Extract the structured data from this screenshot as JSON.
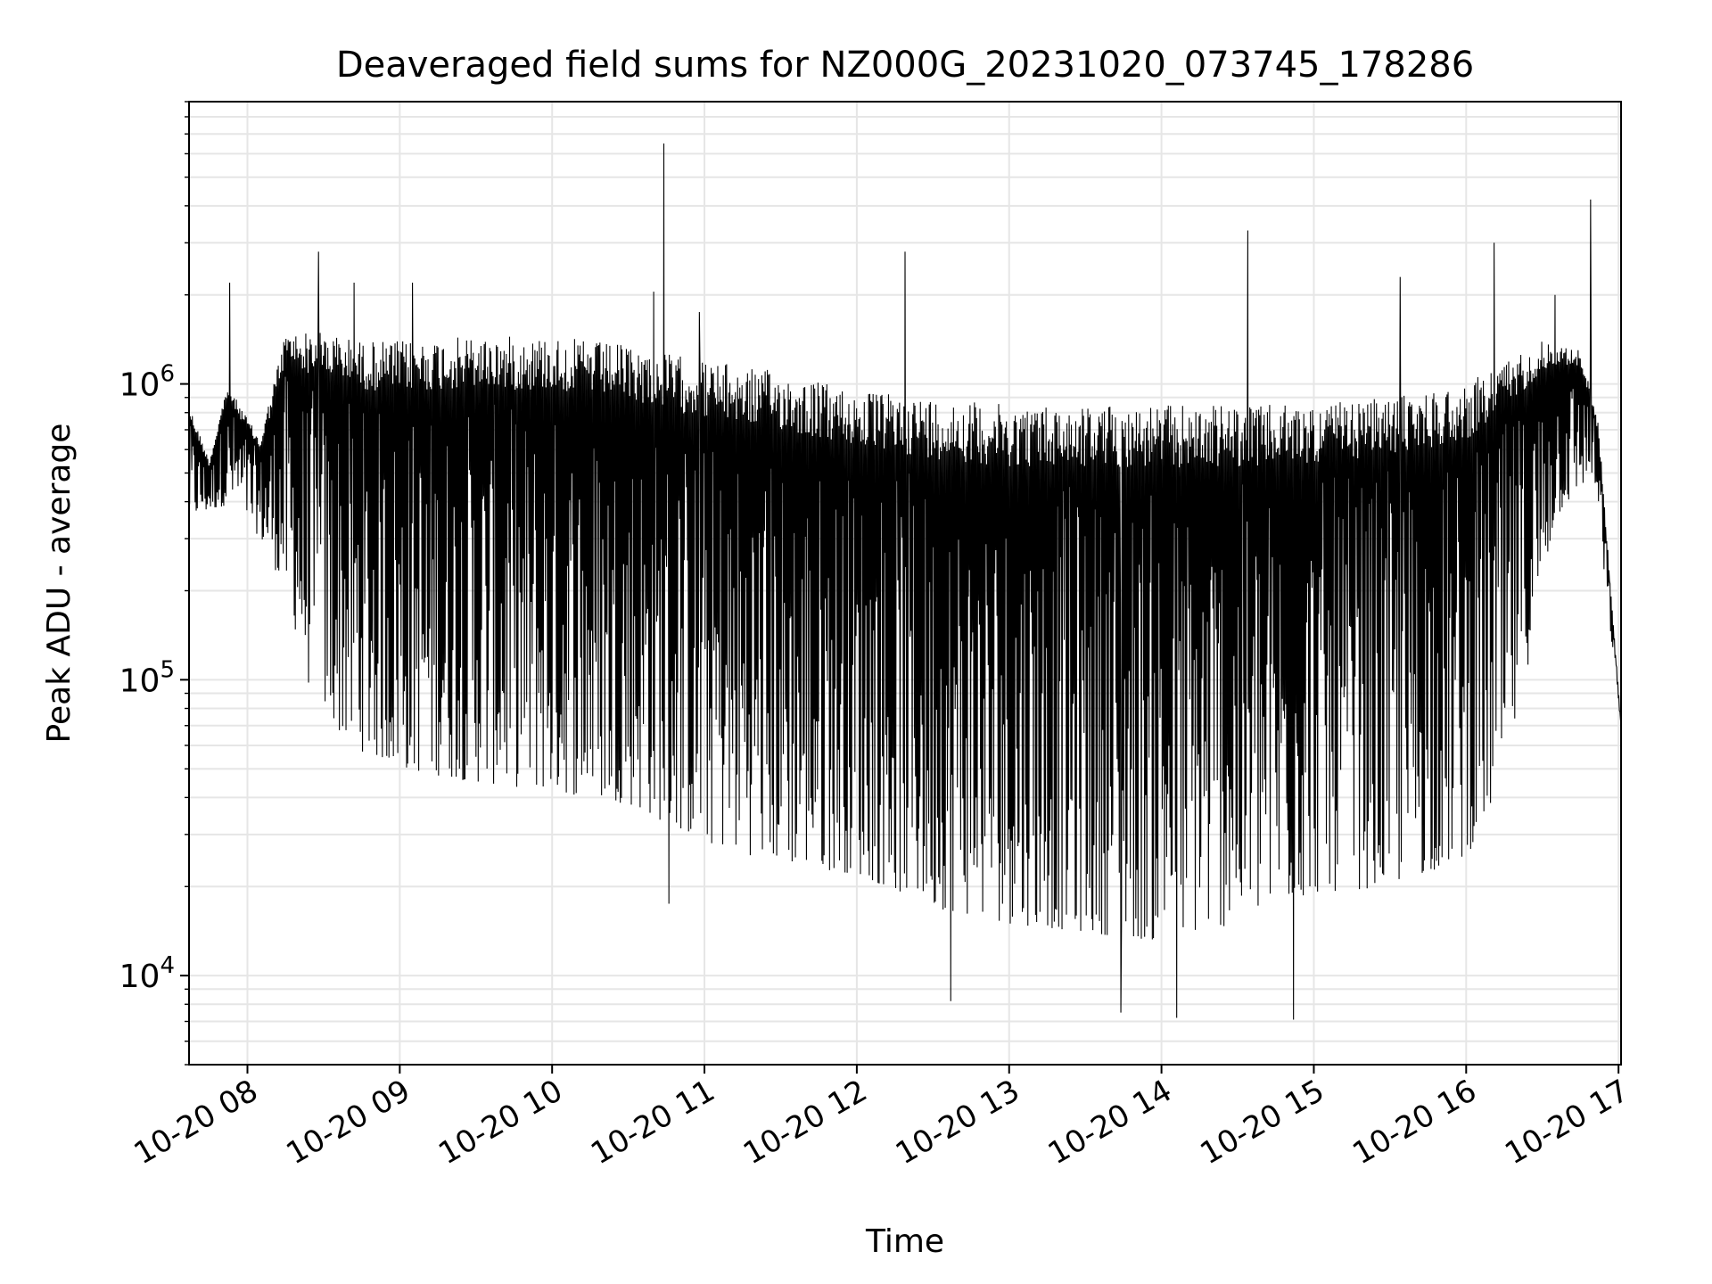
{
  "chart_data": {
    "type": "line",
    "title": "Deaveraged field sums for NZ000G_20231020_073745_178286",
    "xlabel": "Time",
    "ylabel": "Peak ADU - average",
    "x_axis_kind": "time",
    "xlim": [
      "2023-10-20 07:37",
      "2023-10-20 17:01"
    ],
    "ylim": [
      5000,
      9000000
    ],
    "yscale": "log",
    "x_tick_labels": [
      "10-20 08",
      "10-20 09",
      "10-20 10",
      "10-20 11",
      "10-20 12",
      "10-20 13",
      "10-20 14",
      "10-20 15",
      "10-20 16",
      "10-20 17"
    ],
    "y_tick_labels": [
      {
        "base": "10",
        "exp": "4",
        "value": 10000
      },
      {
        "base": "10",
        "exp": "5",
        "value": 100000
      },
      {
        "base": "10",
        "exp": "6",
        "value": 1000000
      }
    ],
    "grid": true,
    "line_color": "#000000",
    "grid_color": "#e6e6e6",
    "series": [
      {
        "envelope_note_hidden": true,
        "upper_envelope": [
          [
            "2023-10-20 07:37",
            850000
          ],
          [
            "2023-10-20 07:45",
            550000
          ],
          [
            "2023-10-20 07:52",
            1000000
          ],
          [
            "2023-10-20 08:05",
            650000
          ],
          [
            "2023-10-20 08:15",
            1500000
          ],
          [
            "2023-10-20 08:30",
            1500000
          ],
          [
            "2023-10-20 08:45",
            1400000
          ],
          [
            "2023-10-20 09:00",
            1400000
          ],
          [
            "2023-10-20 09:30",
            1450000
          ],
          [
            "2023-10-20 10:00",
            1450000
          ],
          [
            "2023-10-20 10:30",
            1350000
          ],
          [
            "2023-10-20 11:00",
            1200000
          ],
          [
            "2023-10-20 11:30",
            1100000
          ],
          [
            "2023-10-20 12:00",
            950000
          ],
          [
            "2023-10-20 12:30",
            900000
          ],
          [
            "2023-10-20 13:00",
            850000
          ],
          [
            "2023-10-20 13:30",
            850000
          ],
          [
            "2023-10-20 14:00",
            850000
          ],
          [
            "2023-10-20 14:30",
            850000
          ],
          [
            "2023-10-20 15:00",
            850000
          ],
          [
            "2023-10-20 15:30",
            900000
          ],
          [
            "2023-10-20 16:00",
            1000000
          ],
          [
            "2023-10-20 16:15",
            1200000
          ],
          [
            "2023-10-20 16:30",
            1400000
          ],
          [
            "2023-10-20 16:45",
            1300000
          ],
          [
            "2023-10-20 16:52",
            750000
          ],
          [
            "2023-10-20 17:01",
            70000
          ]
        ],
        "lower_envelope": [
          [
            "2023-10-20 07:37",
            350000
          ],
          [
            "2023-10-20 07:55",
            400000
          ],
          [
            "2023-10-20 08:05",
            300000
          ],
          [
            "2023-10-20 08:15",
            200000
          ],
          [
            "2023-10-20 08:25",
            90000
          ],
          [
            "2023-10-20 08:40",
            60000
          ],
          [
            "2023-10-20 09:00",
            50000
          ],
          [
            "2023-10-20 09:30",
            45000
          ],
          [
            "2023-10-20 10:00",
            42000
          ],
          [
            "2023-10-20 10:30",
            38000
          ],
          [
            "2023-10-20 11:00",
            28000
          ],
          [
            "2023-10-20 11:30",
            24000
          ],
          [
            "2023-10-20 12:00",
            22000
          ],
          [
            "2023-10-20 12:30",
            17000
          ],
          [
            "2023-10-20 13:00",
            15000
          ],
          [
            "2023-10-20 13:30",
            14000
          ],
          [
            "2023-10-20 14:00",
            13000
          ],
          [
            "2023-10-20 14:30",
            15000
          ],
          [
            "2023-10-20 15:00",
            19000
          ],
          [
            "2023-10-20 15:30",
            20000
          ],
          [
            "2023-10-20 16:00",
            25000
          ],
          [
            "2023-10-20 16:15",
            45000
          ],
          [
            "2023-10-20 16:25",
            120000
          ],
          [
            "2023-10-20 16:35",
            350000
          ],
          [
            "2023-10-20 16:50",
            500000
          ],
          [
            "2023-10-20 16:55",
            200000
          ],
          [
            "2023-10-20 17:01",
            70000
          ]
        ],
        "spikes": [
          [
            "2023-10-20 07:53",
            2200000
          ],
          [
            "2023-10-20 08:28",
            2800000
          ],
          [
            "2023-10-20 08:42",
            2200000
          ],
          [
            "2023-10-20 09:05",
            2200000
          ],
          [
            "2023-10-20 10:40",
            2050000
          ],
          [
            "2023-10-20 10:44",
            6500000
          ],
          [
            "2023-10-20 10:58",
            1750000
          ],
          [
            "2023-10-20 12:19",
            2800000
          ],
          [
            "2023-10-20 14:34",
            3300000
          ],
          [
            "2023-10-20 15:34",
            2300000
          ],
          [
            "2023-10-20 16:11",
            3000000
          ],
          [
            "2023-10-20 16:35",
            2000000
          ],
          [
            "2023-10-20 16:49",
            4200000
          ],
          [
            "2023-10-20 10:46",
            17500
          ],
          [
            "2023-10-20 12:37",
            8200
          ],
          [
            "2023-10-20 13:44",
            7500
          ],
          [
            "2023-10-20 14:06",
            7200
          ],
          [
            "2023-10-20 14:52",
            7100
          ]
        ]
      }
    ]
  }
}
